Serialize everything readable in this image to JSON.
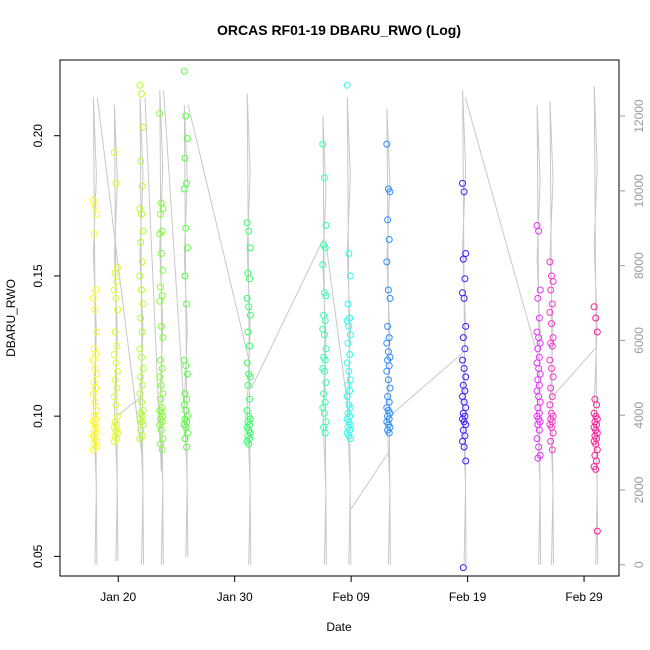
{
  "chart_data": {
    "type": "scatter",
    "title": "ORCAS RF01-19 DBARU_RWO (Log)",
    "xlabel": "Date",
    "ylabel": "DBARU_RWO",
    "x_ticks": [
      "Jan 20",
      "Jan 30",
      "Feb 09",
      "Feb 19",
      "Feb 29"
    ],
    "y_ticks": [
      "0.05",
      "0.10",
      "0.15",
      "0.20"
    ],
    "y2_ticks": [
      "0",
      "2000",
      "4000",
      "6000",
      "8000",
      "10000",
      "12000"
    ],
    "xlim": [
      "2016-01-15",
      "2016-03-03"
    ],
    "ylim": [
      0.043,
      0.227
    ],
    "y2lim": [
      -300,
      13500
    ],
    "flights": [
      {
        "date": "2016-01-18.0",
        "color": "#ffff1a",
        "values": [
          0.177,
          0.175,
          0.172,
          0.165,
          0.145,
          0.142,
          0.138,
          0.13,
          0.124,
          0.122,
          0.12,
          0.117,
          0.115,
          0.112,
          0.11,
          0.108,
          0.105,
          0.102,
          0.1,
          0.099,
          0.098,
          0.097,
          0.096,
          0.095,
          0.094,
          0.093,
          0.092,
          0.091,
          0.09,
          0.089,
          0.088
        ]
      },
      {
        "date": "2016-01-19.8",
        "color": "#e0ff22",
        "values": [
          0.194,
          0.183,
          0.153,
          0.151,
          0.148,
          0.145,
          0.142,
          0.138,
          0.13,
          0.125,
          0.122,
          0.119,
          0.116,
          0.113,
          0.11,
          0.107,
          0.104,
          0.1,
          0.098,
          0.097,
          0.096,
          0.095,
          0.094,
          0.093,
          0.092,
          0.091
        ]
      },
      {
        "date": "2016-01-22.0",
        "color": "#b3ff2a",
        "values": [
          0.218,
          0.215,
          0.203,
          0.191,
          0.182,
          0.174,
          0.172,
          0.166,
          0.162,
          0.155,
          0.15,
          0.145,
          0.14,
          0.135,
          0.13,
          0.124,
          0.121,
          0.117,
          0.114,
          0.111,
          0.108,
          0.105,
          0.102,
          0.101,
          0.1,
          0.099,
          0.098,
          0.097,
          0.095,
          0.093,
          0.092
        ]
      },
      {
        "date": "2016-01-23.7",
        "color": "#7fff33",
        "values": [
          0.208,
          0.176,
          0.174,
          0.172,
          0.166,
          0.165,
          0.158,
          0.152,
          0.146,
          0.143,
          0.141,
          0.132,
          0.128,
          0.12,
          0.117,
          0.114,
          0.111,
          0.108,
          0.106,
          0.103,
          0.102,
          0.101,
          0.1,
          0.099,
          0.098,
          0.097,
          0.095,
          0.092,
          0.09,
          0.088
        ]
      },
      {
        "date": "2016-01-25.8",
        "color": "#55ff3d",
        "values": [
          0.223,
          0.207,
          0.199,
          0.192,
          0.183,
          0.181,
          0.167,
          0.16,
          0.15,
          0.14,
          0.12,
          0.118,
          0.115,
          0.108,
          0.106,
          0.104,
          0.102,
          0.1,
          0.099,
          0.098,
          0.097,
          0.096,
          0.094,
          0.092,
          0.089
        ]
      },
      {
        "date": "2016-01-31.2",
        "color": "#33ff66",
        "values": [
          0.169,
          0.166,
          0.16,
          0.151,
          0.149,
          0.142,
          0.139,
          0.136,
          0.13,
          0.125,
          0.119,
          0.115,
          0.114,
          0.111,
          0.106,
          0.102,
          0.1,
          0.099,
          0.098,
          0.097,
          0.096,
          0.095,
          0.094,
          0.093,
          0.092,
          0.091,
          0.09
        ]
      },
      {
        "date": "2016-02-06.7",
        "color": "#33ffaa",
        "values": [
          0.197,
          0.185,
          0.168,
          0.161,
          0.16,
          0.154,
          0.144,
          0.143,
          0.136,
          0.134,
          0.131,
          0.129,
          0.124,
          0.121,
          0.12,
          0.117,
          0.116,
          0.112,
          0.108,
          0.105,
          0.103,
          0.101,
          0.098,
          0.096,
          0.094
        ]
      },
      {
        "date": "2016-02-08.8",
        "color": "#2affee",
        "values": [
          0.218,
          0.158,
          0.15,
          0.14,
          0.135,
          0.134,
          0.132,
          0.129,
          0.126,
          0.122,
          0.119,
          0.116,
          0.113,
          0.111,
          0.109,
          0.107,
          0.104,
          0.103,
          0.101,
          0.1,
          0.099,
          0.098,
          0.097,
          0.096,
          0.095,
          0.094,
          0.093,
          0.092
        ]
      },
      {
        "date": "2016-02-12.2",
        "color": "#2a8cff",
        "values": [
          0.197,
          0.181,
          0.18,
          0.17,
          0.163,
          0.155,
          0.145,
          0.142,
          0.132,
          0.128,
          0.126,
          0.123,
          0.121,
          0.12,
          0.118,
          0.116,
          0.113,
          0.11,
          0.107,
          0.105,
          0.103,
          0.102,
          0.101,
          0.1,
          0.099,
          0.098,
          0.097,
          0.096,
          0.095,
          0.094
        ]
      },
      {
        "date": "2016-02-18.7",
        "color": "#3a1aff",
        "values": [
          0.183,
          0.18,
          0.158,
          0.156,
          0.149,
          0.144,
          0.142,
          0.132,
          0.128,
          0.124,
          0.12,
          0.117,
          0.114,
          0.111,
          0.109,
          0.107,
          0.105,
          0.103,
          0.101,
          0.1,
          0.099,
          0.098,
          0.097,
          0.095,
          0.093,
          0.091,
          0.089,
          0.084,
          0.046
        ]
      },
      {
        "date": "2016-02-25.1",
        "color": "#e633ff",
        "values": [
          0.168,
          0.166,
          0.145,
          0.142,
          0.135,
          0.13,
          0.128,
          0.126,
          0.124,
          0.121,
          0.119,
          0.117,
          0.115,
          0.113,
          0.111,
          0.109,
          0.107,
          0.105,
          0.103,
          0.101,
          0.1,
          0.099,
          0.098,
          0.097,
          0.095,
          0.092,
          0.089,
          0.086,
          0.085
        ]
      },
      {
        "date": "2016-02-26.2",
        "color": "#ff33cc",
        "values": [
          0.155,
          0.15,
          0.148,
          0.145,
          0.14,
          0.137,
          0.133,
          0.128,
          0.126,
          0.125,
          0.12,
          0.117,
          0.114,
          0.11,
          0.107,
          0.104,
          0.101,
          0.1,
          0.099,
          0.098,
          0.097,
          0.096,
          0.094,
          0.091,
          0.088
        ]
      },
      {
        "date": "2016-03-01.0",
        "color": "#ff1a9a",
        "values": [
          0.139,
          0.135,
          0.13,
          0.106,
          0.104,
          0.101,
          0.1,
          0.099,
          0.098,
          0.097,
          0.096,
          0.095,
          0.094,
          0.093,
          0.092,
          0.091,
          0.09,
          0.088,
          0.086,
          0.084,
          0.082,
          0.081,
          0.059
        ]
      }
    ],
    "altitude_series": {
      "color": "#c8c8c8",
      "profiles": [
        {
          "date": "2016-01-18.0",
          "min": 0,
          "max": 12500
        },
        {
          "date": "2016-01-19.8",
          "min": 100,
          "max": 12300
        },
        {
          "date": "2016-01-22.0",
          "min": 0,
          "max": 12500
        },
        {
          "date": "2016-01-23.7",
          "min": 0,
          "max": 12700
        },
        {
          "date": "2016-01-25.8",
          "min": 200,
          "max": 12300
        },
        {
          "date": "2016-01-31.2",
          "min": 0,
          "max": 12600
        },
        {
          "date": "2016-02-06.7",
          "min": 0,
          "max": 12000
        },
        {
          "date": "2016-02-08.8",
          "min": 0,
          "max": 12500
        },
        {
          "date": "2016-02-12.2",
          "min": 0,
          "max": 12200
        },
        {
          "date": "2016-02-18.7",
          "min": 0,
          "max": 12700
        },
        {
          "date": "2016-02-25.1",
          "min": 0,
          "max": 12300
        },
        {
          "date": "2016-02-26.2",
          "min": 0,
          "max": 12400
        },
        {
          "date": "2016-03-01.0",
          "min": 0,
          "max": 12800
        }
      ],
      "connectors": [
        {
          "from": [
            "2016-01-18.2",
            12500
          ],
          "to": [
            "2016-01-22.0",
            3000
          ]
        },
        {
          "from": [
            "2016-01-20.0",
            4000
          ],
          "to": [
            "2016-01-22.0",
            4500
          ]
        },
        {
          "from": [
            "2016-01-22.3",
            12500
          ],
          "to": [
            "2016-01-23.7",
            2500
          ]
        },
        {
          "from": [
            "2016-01-23.9",
            12700
          ],
          "to": [
            "2016-01-25.8",
            3500
          ]
        },
        {
          "from": [
            "2016-01-26.0",
            12300
          ],
          "to": [
            "2016-01-31.2",
            5500
          ]
        },
        {
          "from": [
            "2016-01-31.4",
            4700
          ],
          "to": [
            "2016-02-06.6",
            8700
          ]
        },
        {
          "from": [
            "2016-02-06.8",
            8700
          ],
          "to": [
            "2016-02-08.8",
            4000
          ]
        },
        {
          "from": [
            "2016-02-09.0",
            1500
          ],
          "to": [
            "2016-02-12.2",
            3000
          ]
        },
        {
          "from": [
            "2016-02-12.4",
            4000
          ],
          "to": [
            "2016-02-18.7",
            5700
          ]
        },
        {
          "from": [
            "2016-02-18.8",
            12500
          ],
          "to": [
            "2016-02-25.1",
            5500
          ]
        },
        {
          "from": [
            "2016-02-26.3",
            4500
          ],
          "to": [
            "2016-03-01.0",
            5800
          ]
        }
      ]
    }
  }
}
